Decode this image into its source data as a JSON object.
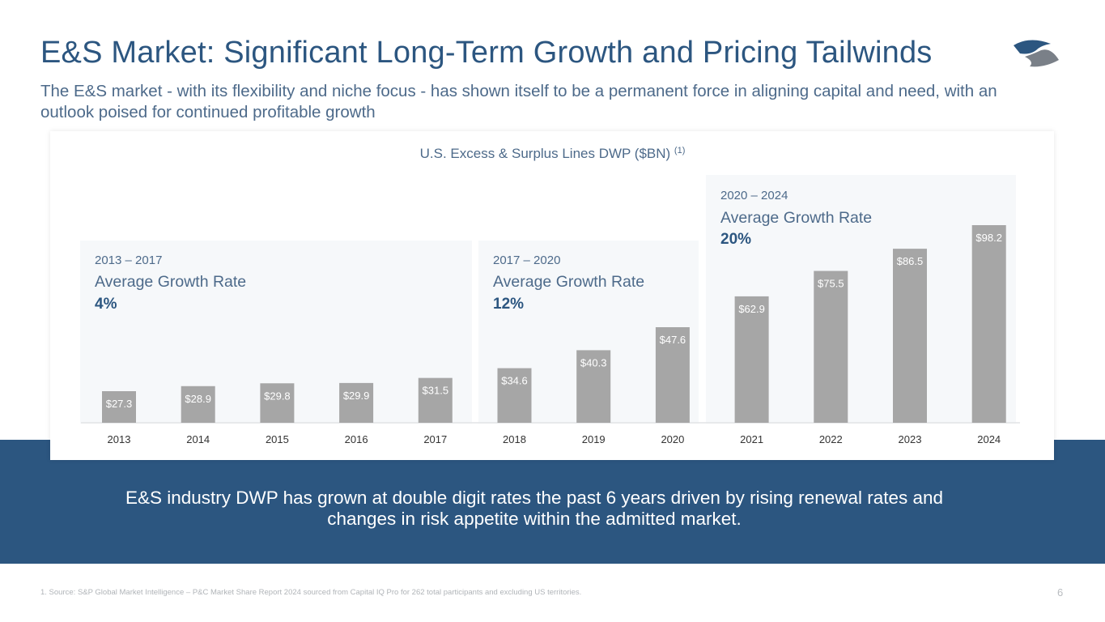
{
  "slide": {
    "title": "E&S Market: Significant Long-Term Growth and Pricing Tailwinds",
    "subtitle": "The E&S market - with its flexibility and niche focus - has shown itself to be a permanent force in aligning capital and need, with an outlook poised for continued profitable growth",
    "logo_icon": "company-swoosh-logo",
    "callout": "E&S industry DWP has grown at double digit rates the past 6 years driven by rising renewal rates and changes in risk appetite within the admitted market.",
    "footnote": "1.  Source: S&P Global Market Intelligence – P&C Market Share Report 2024 sourced from Capital IQ Pro for 262 total participants and excluding US territories.",
    "page_number": "6"
  },
  "colors": {
    "brand_blue": "#2c5680",
    "bar_gray": "#a6a6a6",
    "panel_bg": "#f6f8fa"
  },
  "chart_data": {
    "type": "bar",
    "title": "U.S. Excess & Surplus Lines DWP ($BN)",
    "title_footnote_ref": "(1)",
    "xlabel": "",
    "ylabel": "",
    "grid": false,
    "categories": [
      "2013",
      "2014",
      "2015",
      "2016",
      "2017",
      "2018",
      "2019",
      "2020",
      "2021",
      "2022",
      "2023",
      "2024"
    ],
    "values": [
      27.3,
      28.9,
      29.8,
      29.9,
      31.5,
      34.6,
      40.3,
      47.6,
      62.9,
      75.5,
      86.5,
      98.2
    ],
    "data_labels": [
      "$27.3",
      "$28.9",
      "$29.8",
      "$29.9",
      "$31.5",
      "$34.6",
      "$40.3",
      "$47.6",
      "$62.9",
      "$75.5",
      "$86.5",
      "$98.2"
    ],
    "periods": [
      {
        "range": "2013 – 2017",
        "label": "Average Growth Rate",
        "value": "4%",
        "growth_rate_pct": 4,
        "years": [
          "2013",
          "2017"
        ]
      },
      {
        "range": "2017 – 2020",
        "label": "Average Growth Rate",
        "value": "12%",
        "growth_rate_pct": 12,
        "years": [
          "2018",
          "2020"
        ]
      },
      {
        "range": "2020 – 2024",
        "label": "Average Growth Rate",
        "value": "20%",
        "growth_rate_pct": 20,
        "years": [
          "2021",
          "2024"
        ]
      }
    ]
  }
}
